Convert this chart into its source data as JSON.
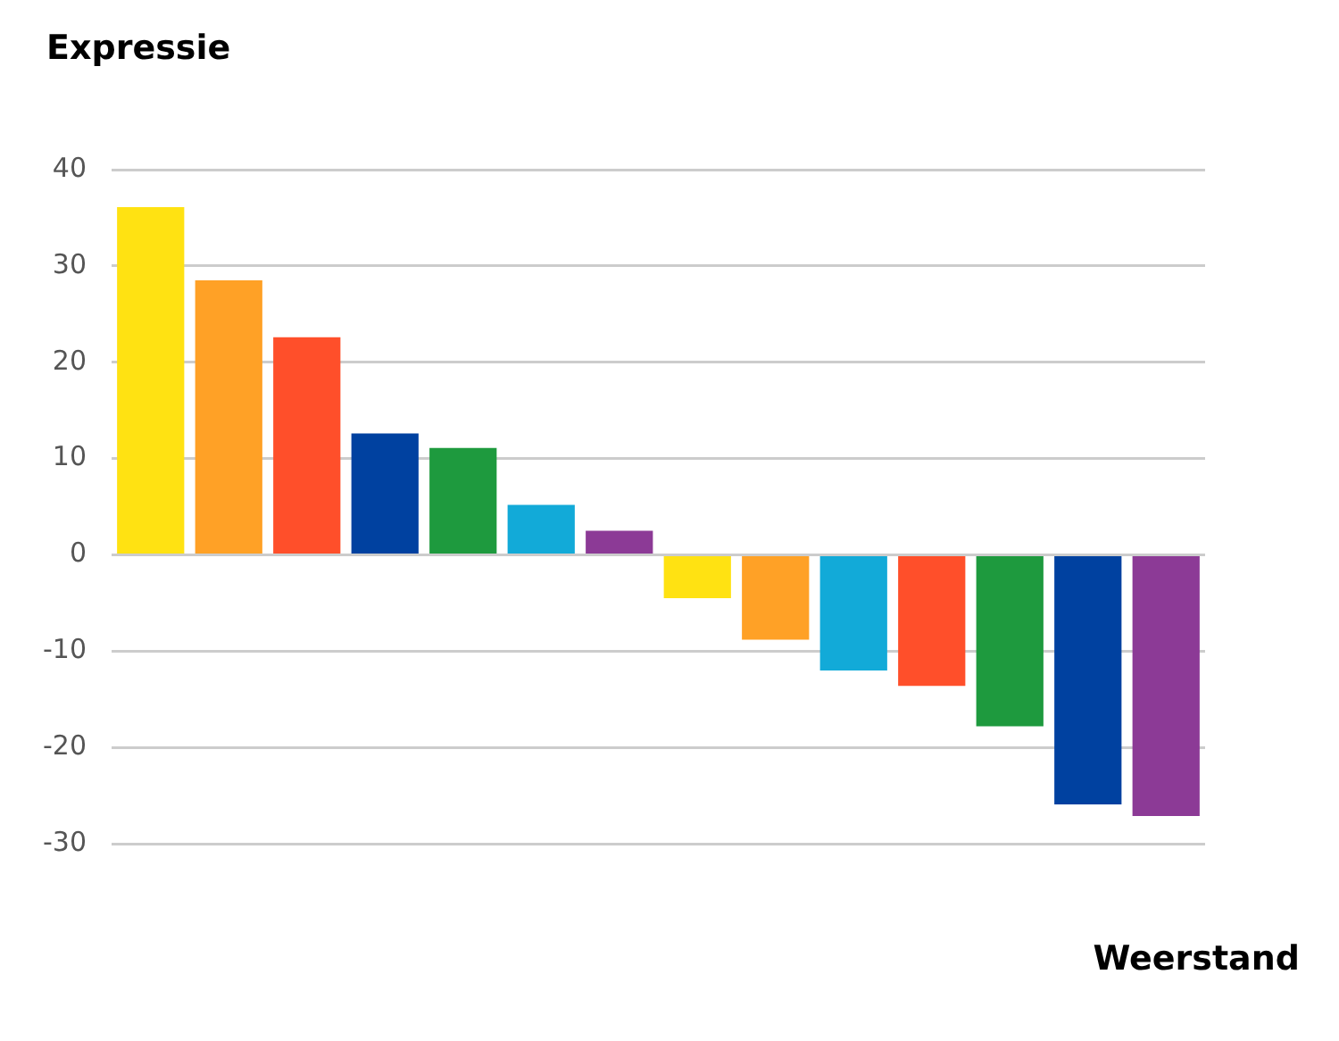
{
  "chart_data": {
    "type": "bar",
    "ylabel": "Expressie",
    "xlabel": "Weerstand",
    "categories": [
      null,
      null,
      null,
      null,
      null,
      null,
      null,
      null,
      null,
      null,
      null,
      null,
      null,
      null
    ],
    "values": [
      36.1,
      28.5,
      22.6,
      12.6,
      11.1,
      5.2,
      2.5,
      -4.5,
      -8.8,
      -12,
      -13.6,
      -17.8,
      -25.9,
      -27.1
    ],
    "colors": [
      "#ffe212",
      "#ffa126",
      "#ff4f2a",
      "#0041a0",
      "#1e9a3e",
      "#12aad8",
      "#8c3a96",
      "#ffe212",
      "#ffa126",
      "#12aad8",
      "#ff4f2a",
      "#1e9a3e",
      "#0041a0",
      "#8c3a96"
    ],
    "ylim": [
      -30,
      40
    ],
    "yticks": [
      -30,
      -20,
      -10,
      0,
      10,
      20,
      30,
      40
    ],
    "grid": "y"
  }
}
